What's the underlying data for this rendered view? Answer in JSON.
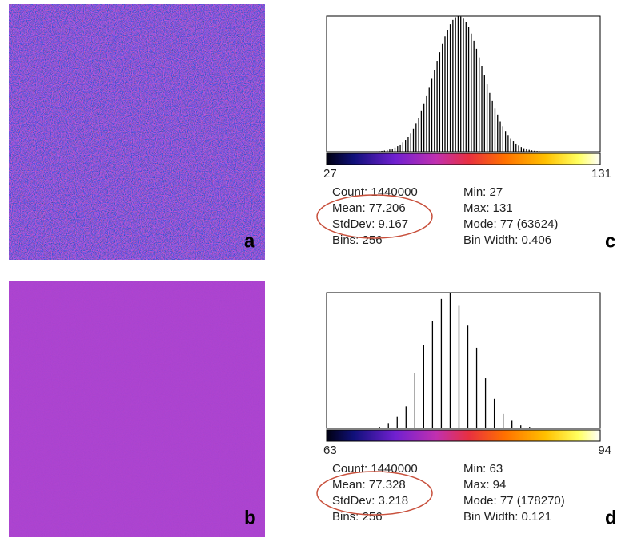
{
  "panels": [
    {
      "image_label": "a",
      "histogram_label": "c",
      "histogram": {
        "type": "histogram",
        "xlim": [
          27,
          131
        ],
        "ylim": [
          0,
          63624
        ],
        "x": [
          45,
          46,
          47,
          48,
          49,
          50,
          51,
          52,
          53,
          54,
          55,
          56,
          57,
          58,
          59,
          60,
          61,
          62,
          63,
          64,
          65,
          66,
          67,
          68,
          69,
          70,
          71,
          72,
          73,
          74,
          75,
          76,
          77,
          78,
          79,
          80,
          81,
          82,
          83,
          84,
          85,
          86,
          87,
          88,
          89,
          90,
          91,
          92,
          93,
          94,
          95,
          96,
          97,
          98,
          99,
          100,
          101,
          102,
          103,
          104,
          105,
          106,
          107,
          108,
          109,
          110
        ],
        "counts": [
          133,
          194,
          279,
          398,
          560,
          778,
          1070,
          1452,
          1948,
          2583,
          3385,
          4384,
          5605,
          7088,
          8863,
          10937,
          13342,
          16084,
          19164,
          22555,
          26232,
          30158,
          34262,
          38442,
          42648,
          46732,
          50613,
          54163,
          57281,
          59857,
          61817,
          63083,
          63624,
          63382,
          62410,
          60723,
          58382,
          55480,
          52089,
          48322,
          44301,
          40127,
          35915,
          31780,
          27772,
          23999,
          20474,
          17274,
          14398,
          11860,
          9652,
          7762,
          6172,
          4842,
          3760,
          2882,
          2189,
          1635,
          1209,
          884,
          639,
          457,
          322,
          225,
          155,
          106
        ]
      },
      "stats_left": [
        "Count: 1440000",
        "Mean: 77.206",
        "StdDev: 9.167",
        "Bins: 256"
      ],
      "stats_right": [
        "Min: 27",
        "Max: 131",
        "Mode: 77 (63624)",
        "Bin Width: 0.406"
      ]
    },
    {
      "image_label": "b",
      "histogram_label": "d",
      "histogram": {
        "type": "histogram",
        "xlim": [
          63,
          94
        ],
        "ylim": [
          0,
          178270
        ],
        "x": [
          68,
          69,
          70,
          71,
          72,
          73,
          74,
          75,
          76,
          77,
          78,
          79,
          80,
          81,
          82,
          83,
          84,
          85,
          86,
          87
        ],
        "counts": [
          500,
          2000,
          7000,
          15000,
          29000,
          73000,
          110000,
          141000,
          170000,
          178270,
          161000,
          135000,
          106000,
          66000,
          39000,
          19000,
          10000,
          4000,
          2000,
          800
        ]
      },
      "stats_left": [
        "Count: 1440000",
        "Mean: 77.328",
        "StdDev: 3.218",
        "Bins: 256"
      ],
      "stats_right": [
        "Min: 63",
        "Max: 94",
        "Mode: 77 (178270)",
        "Bin Width: 0.121"
      ]
    }
  ]
}
